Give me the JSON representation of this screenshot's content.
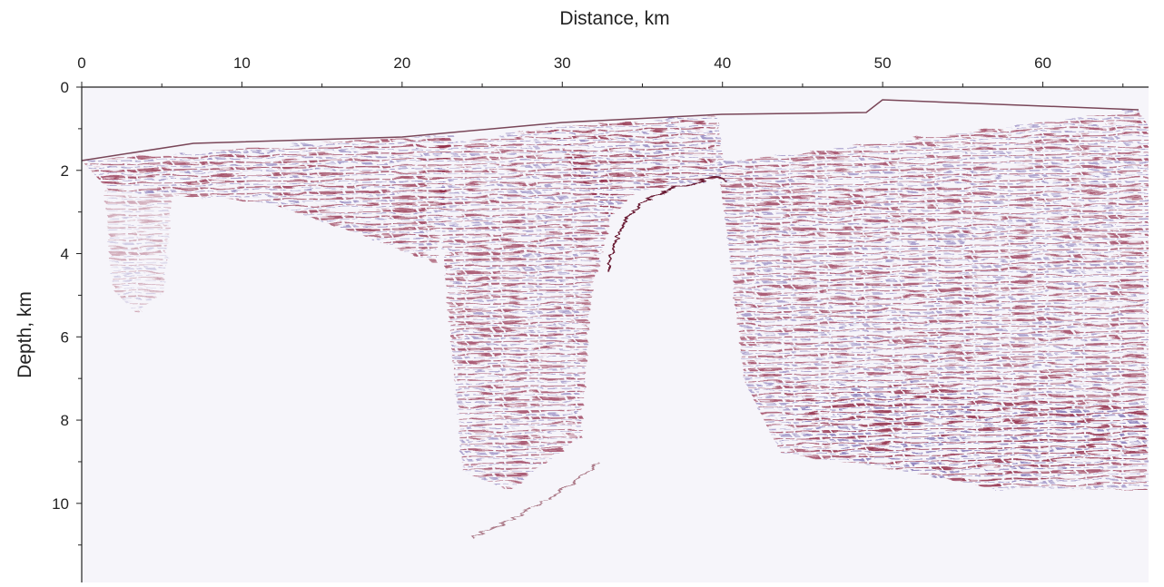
{
  "chart_data": {
    "type": "image",
    "xlabel": "Distance, km",
    "ylabel": "Depth, km",
    "xlim": [
      0,
      66.6
    ],
    "ylim": [
      0,
      11.9
    ],
    "y_inverted": true,
    "x_axis_position": "top",
    "xticks": [
      0,
      10,
      20,
      30,
      40,
      50,
      60
    ],
    "xminorticks": [
      5,
      15,
      25,
      35,
      45,
      55,
      65
    ],
    "yticks": [
      0,
      2,
      4,
      6,
      8,
      10
    ],
    "yminorticks": [
      1,
      3,
      5,
      7,
      9,
      11
    ]
  }
}
